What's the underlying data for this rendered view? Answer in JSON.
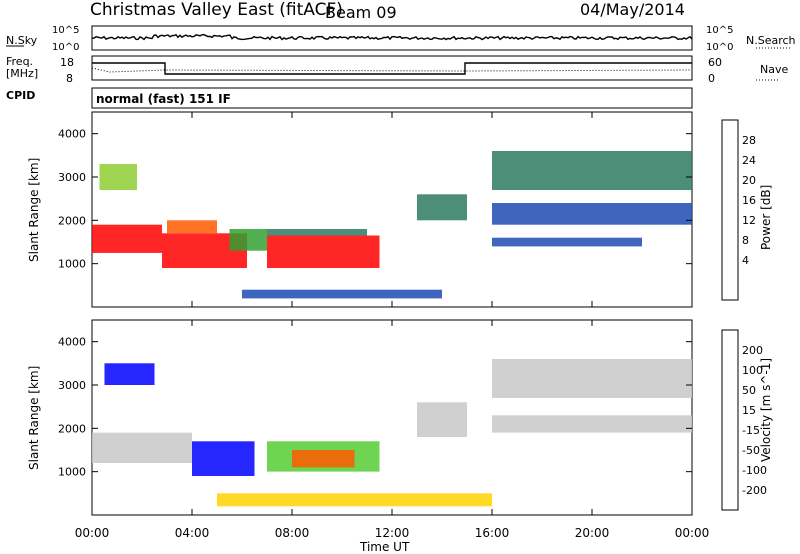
{
  "header": {
    "title": "Christmas Valley East (fitACF)",
    "beam": "Beam 09",
    "date": "04/May/2014"
  },
  "panels": {
    "nsky": {
      "label": "N.Sky",
      "left_ticks": [
        "10^5",
        "10^0"
      ],
      "right_ticks": [
        "10^5",
        "10^0"
      ],
      "right_label": "N.Search"
    },
    "freq": {
      "label_line1": "Freq.",
      "label_line2": "[MHz]",
      "left_ticks": [
        "18",
        "8"
      ],
      "right_ticks": [
        "60",
        "0"
      ],
      "right_label": "Nave"
    },
    "cpid": {
      "label": "CPID",
      "value": "normal (fast) 151 IF"
    }
  },
  "colors": {
    "power": [
      "#0000ff",
      "#1f4ab4",
      "#2d7a5f",
      "#33a033",
      "#8fce33",
      "#ffd200",
      "#ff9900",
      "#ff5a00",
      "#ff0000"
    ],
    "velocity": [
      "#0000ff",
      "#1f4ab4",
      "#2d7a5f",
      "#55cc33",
      "#c8c8c8",
      "#ffd200",
      "#ff9900",
      "#ff5a00",
      "#ff0000"
    ]
  },
  "chart_data": [
    {
      "type": "heatmap",
      "name": "power",
      "ylabel": "Slant Range [km]",
      "yticks": [
        "4000",
        "3000",
        "2000",
        "1000"
      ],
      "colorbar_label": "Power [dB]",
      "colorbar_ticks": [
        "28",
        "24",
        "20",
        "16",
        "12",
        "8",
        "4"
      ],
      "regions": [
        {
          "t0": 0.0,
          "t1": 2.8,
          "r0": 1250,
          "r1": 1900,
          "c": 8
        },
        {
          "t0": 2.8,
          "t1": 6.2,
          "r0": 900,
          "r1": 1700,
          "c": 8
        },
        {
          "t0": 3.0,
          "t1": 5.0,
          "r0": 1700,
          "r1": 2000,
          "c": 7
        },
        {
          "t0": 7.0,
          "t1": 11.5,
          "r0": 900,
          "r1": 1650,
          "c": 8
        },
        {
          "t0": 7.0,
          "t1": 11.0,
          "r0": 1650,
          "r1": 1800,
          "c": 2
        },
        {
          "t0": 5.5,
          "t1": 7.0,
          "r0": 1300,
          "r1": 1800,
          "c": 3
        },
        {
          "t0": 0.3,
          "t1": 1.8,
          "r0": 2700,
          "r1": 3300,
          "c": 4
        },
        {
          "t0": 13.0,
          "t1": 15.0,
          "r0": 2000,
          "r1": 2600,
          "c": 2
        },
        {
          "t0": 16.0,
          "t1": 24.0,
          "r0": 2700,
          "r1": 3600,
          "c": 2
        },
        {
          "t0": 16.0,
          "t1": 24.0,
          "r0": 1900,
          "r1": 2400,
          "c": 1
        },
        {
          "t0": 16.0,
          "t1": 22.0,
          "r0": 1400,
          "r1": 1600,
          "c": 1
        },
        {
          "t0": 6.0,
          "t1": 14.0,
          "r0": 200,
          "r1": 400,
          "c": 1
        }
      ]
    },
    {
      "type": "heatmap",
      "name": "velocity",
      "ylabel": "Slant Range [km]",
      "yticks": [
        "4000",
        "3000",
        "2000",
        "1000"
      ],
      "colorbar_label": "Velocity [m s^-1]",
      "colorbar_ticks": [
        "200",
        "100",
        "50",
        "15",
        "-15",
        "-50",
        "-100",
        "-200"
      ],
      "regions": [
        {
          "t0": 0.0,
          "t1": 4.0,
          "r0": 1200,
          "r1": 1900,
          "c": 4
        },
        {
          "t0": 4.0,
          "t1": 6.5,
          "r0": 900,
          "r1": 1700,
          "c": 0
        },
        {
          "t0": 0.5,
          "t1": 2.5,
          "r0": 3000,
          "r1": 3500,
          "c": 0
        },
        {
          "t0": 7.0,
          "t1": 11.5,
          "r0": 1000,
          "r1": 1700,
          "c": 3
        },
        {
          "t0": 8.0,
          "t1": 10.5,
          "r0": 1100,
          "r1": 1500,
          "c": 7
        },
        {
          "t0": 13.0,
          "t1": 15.0,
          "r0": 1800,
          "r1": 2600,
          "c": 4
        },
        {
          "t0": 16.0,
          "t1": 24.0,
          "r0": 2700,
          "r1": 3600,
          "c": 4
        },
        {
          "t0": 16.0,
          "t1": 24.0,
          "r0": 1900,
          "r1": 2300,
          "c": 4
        },
        {
          "t0": 5.0,
          "t1": 16.0,
          "r0": 200,
          "r1": 500,
          "c": 5
        }
      ]
    }
  ],
  "xaxis": {
    "label": "Time UT",
    "ticks": [
      "00:00",
      "04:00",
      "08:00",
      "12:00",
      "16:00",
      "20:00",
      "00:00"
    ]
  }
}
